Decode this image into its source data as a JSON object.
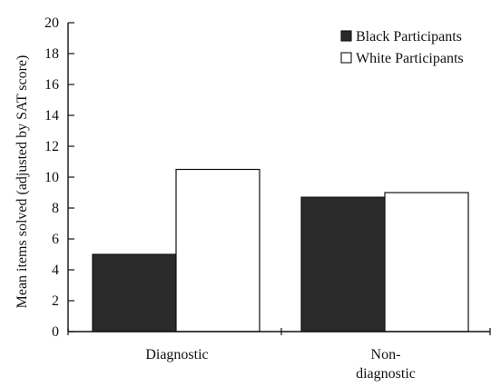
{
  "chart_data": {
    "type": "bar",
    "categories": [
      "Diagnostic",
      "Non-\ndiagnostic"
    ],
    "series": [
      {
        "name": "Black Participants",
        "values": [
          5.0,
          8.7
        ],
        "color": "#2a2a2a"
      },
      {
        "name": "White Participants",
        "values": [
          10.5,
          9.0
        ],
        "color": "#ffffff"
      }
    ],
    "title": "",
    "xlabel": "",
    "ylabel": "Mean items solved (adjusted by SAT score)",
    "ylim": [
      0,
      20
    ],
    "yticks": [
      0,
      2,
      4,
      6,
      8,
      10,
      12,
      14,
      16,
      18,
      20
    ],
    "grid": false,
    "legend_position": "top-right"
  }
}
